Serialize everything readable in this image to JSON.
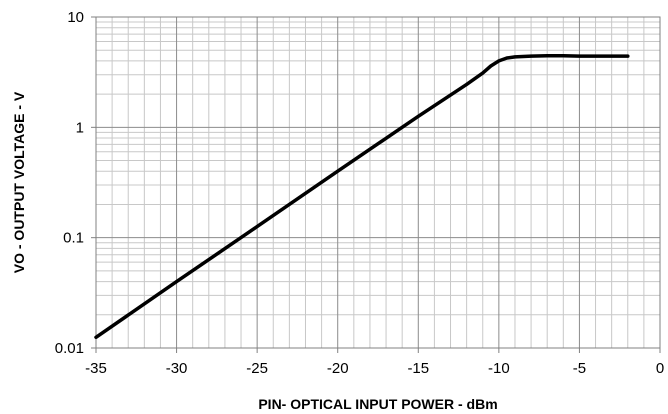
{
  "chart_data": {
    "type": "line",
    "title": "",
    "xlabel": "PIN- OPTICAL INPUT POWER - dBm",
    "ylabel": "VO - OUTPUT VOLTAGE - V",
    "xlim": [
      -35,
      0
    ],
    "ylim": [
      0.01,
      10
    ],
    "yscale": "log",
    "grid": true,
    "x_major_ticks": [
      -35,
      -30,
      -25,
      -20,
      -15,
      -10,
      -5,
      0
    ],
    "x_tick_labels": [
      "-35",
      "-30",
      "-25",
      "-20",
      "-15",
      "-10",
      "-5",
      "0"
    ],
    "y_major_ticks": [
      0.01,
      0.1,
      1,
      10
    ],
    "y_tick_labels": [
      "0.01",
      "0.1",
      "1",
      "10"
    ],
    "series": [
      {
        "color": "#000000",
        "x": [
          -35,
          -30,
          -25,
          -20,
          -15,
          -12,
          -11,
          -10.5,
          -10,
          -9.5,
          -9,
          -8,
          -7,
          -6,
          -5,
          -4,
          -3,
          -2
        ],
        "y": [
          0.0125,
          0.04,
          0.126,
          0.4,
          1.26,
          2.45,
          3.1,
          3.6,
          4.0,
          4.25,
          4.35,
          4.42,
          4.45,
          4.45,
          4.42,
          4.42,
          4.42,
          4.42
        ]
      }
    ]
  }
}
